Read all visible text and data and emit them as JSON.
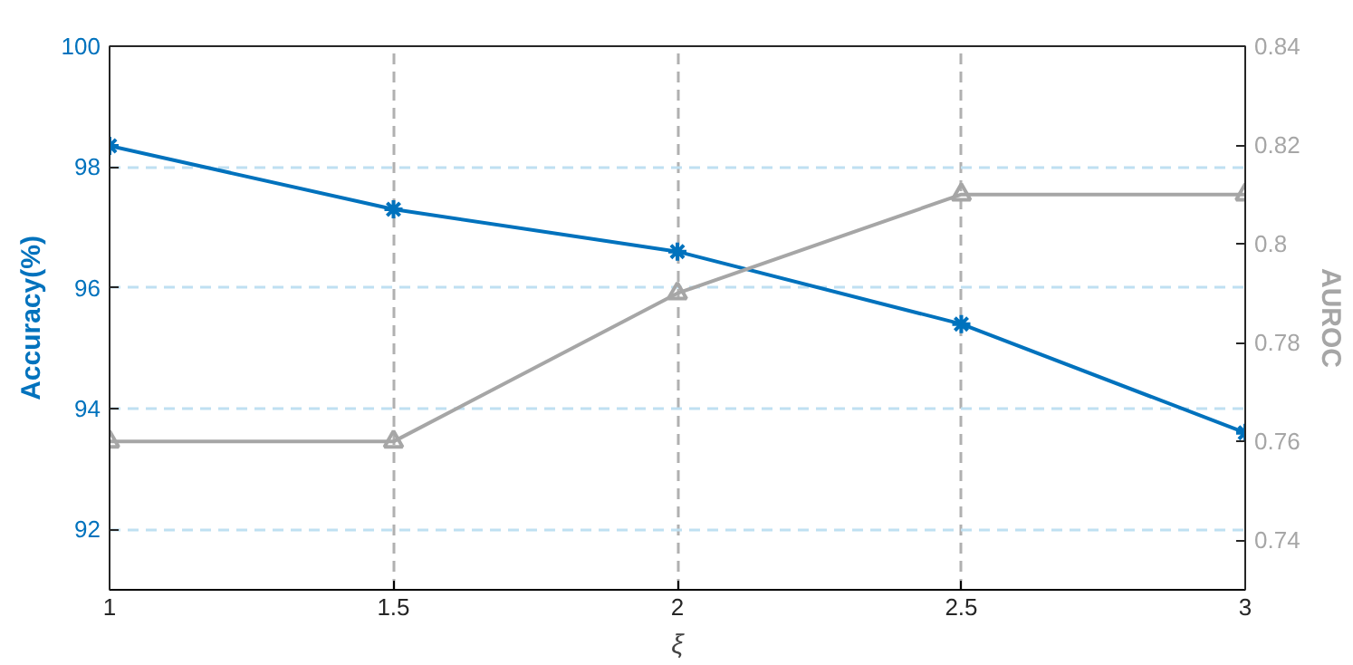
{
  "chart_data": {
    "type": "line",
    "xlabel": "ξ",
    "ylabel": "Accuracy(%)",
    "y2label": "AUROC",
    "x": [
      1,
      1.5,
      2,
      2.5,
      3
    ],
    "series": [
      {
        "color": "#0072bd",
        "values": [
          98.35,
          97.3,
          96.6,
          95.4,
          93.6
        ],
        "marker": "cross"
      },
      {
        "color": "#a6a6a6",
        "values": [
          0.76,
          0.76,
          0.79,
          0.81,
          0.81
        ],
        "marker": "triangle",
        "axis": "y2"
      }
    ],
    "xlim": [
      1,
      3
    ],
    "xticks": [
      1,
      1.5,
      2,
      2.5,
      3
    ],
    "ylim": [
      91,
      100
    ],
    "yticks": [
      92,
      94,
      96,
      98,
      100
    ],
    "y2lim": [
      0.73,
      0.84
    ],
    "y2ticks": [
      0.74,
      0.76,
      0.78,
      {
        "value": 0.8,
        "label": "0.8"
      },
      0.82,
      0.84
    ],
    "grid": true,
    "line_style": "solid"
  }
}
